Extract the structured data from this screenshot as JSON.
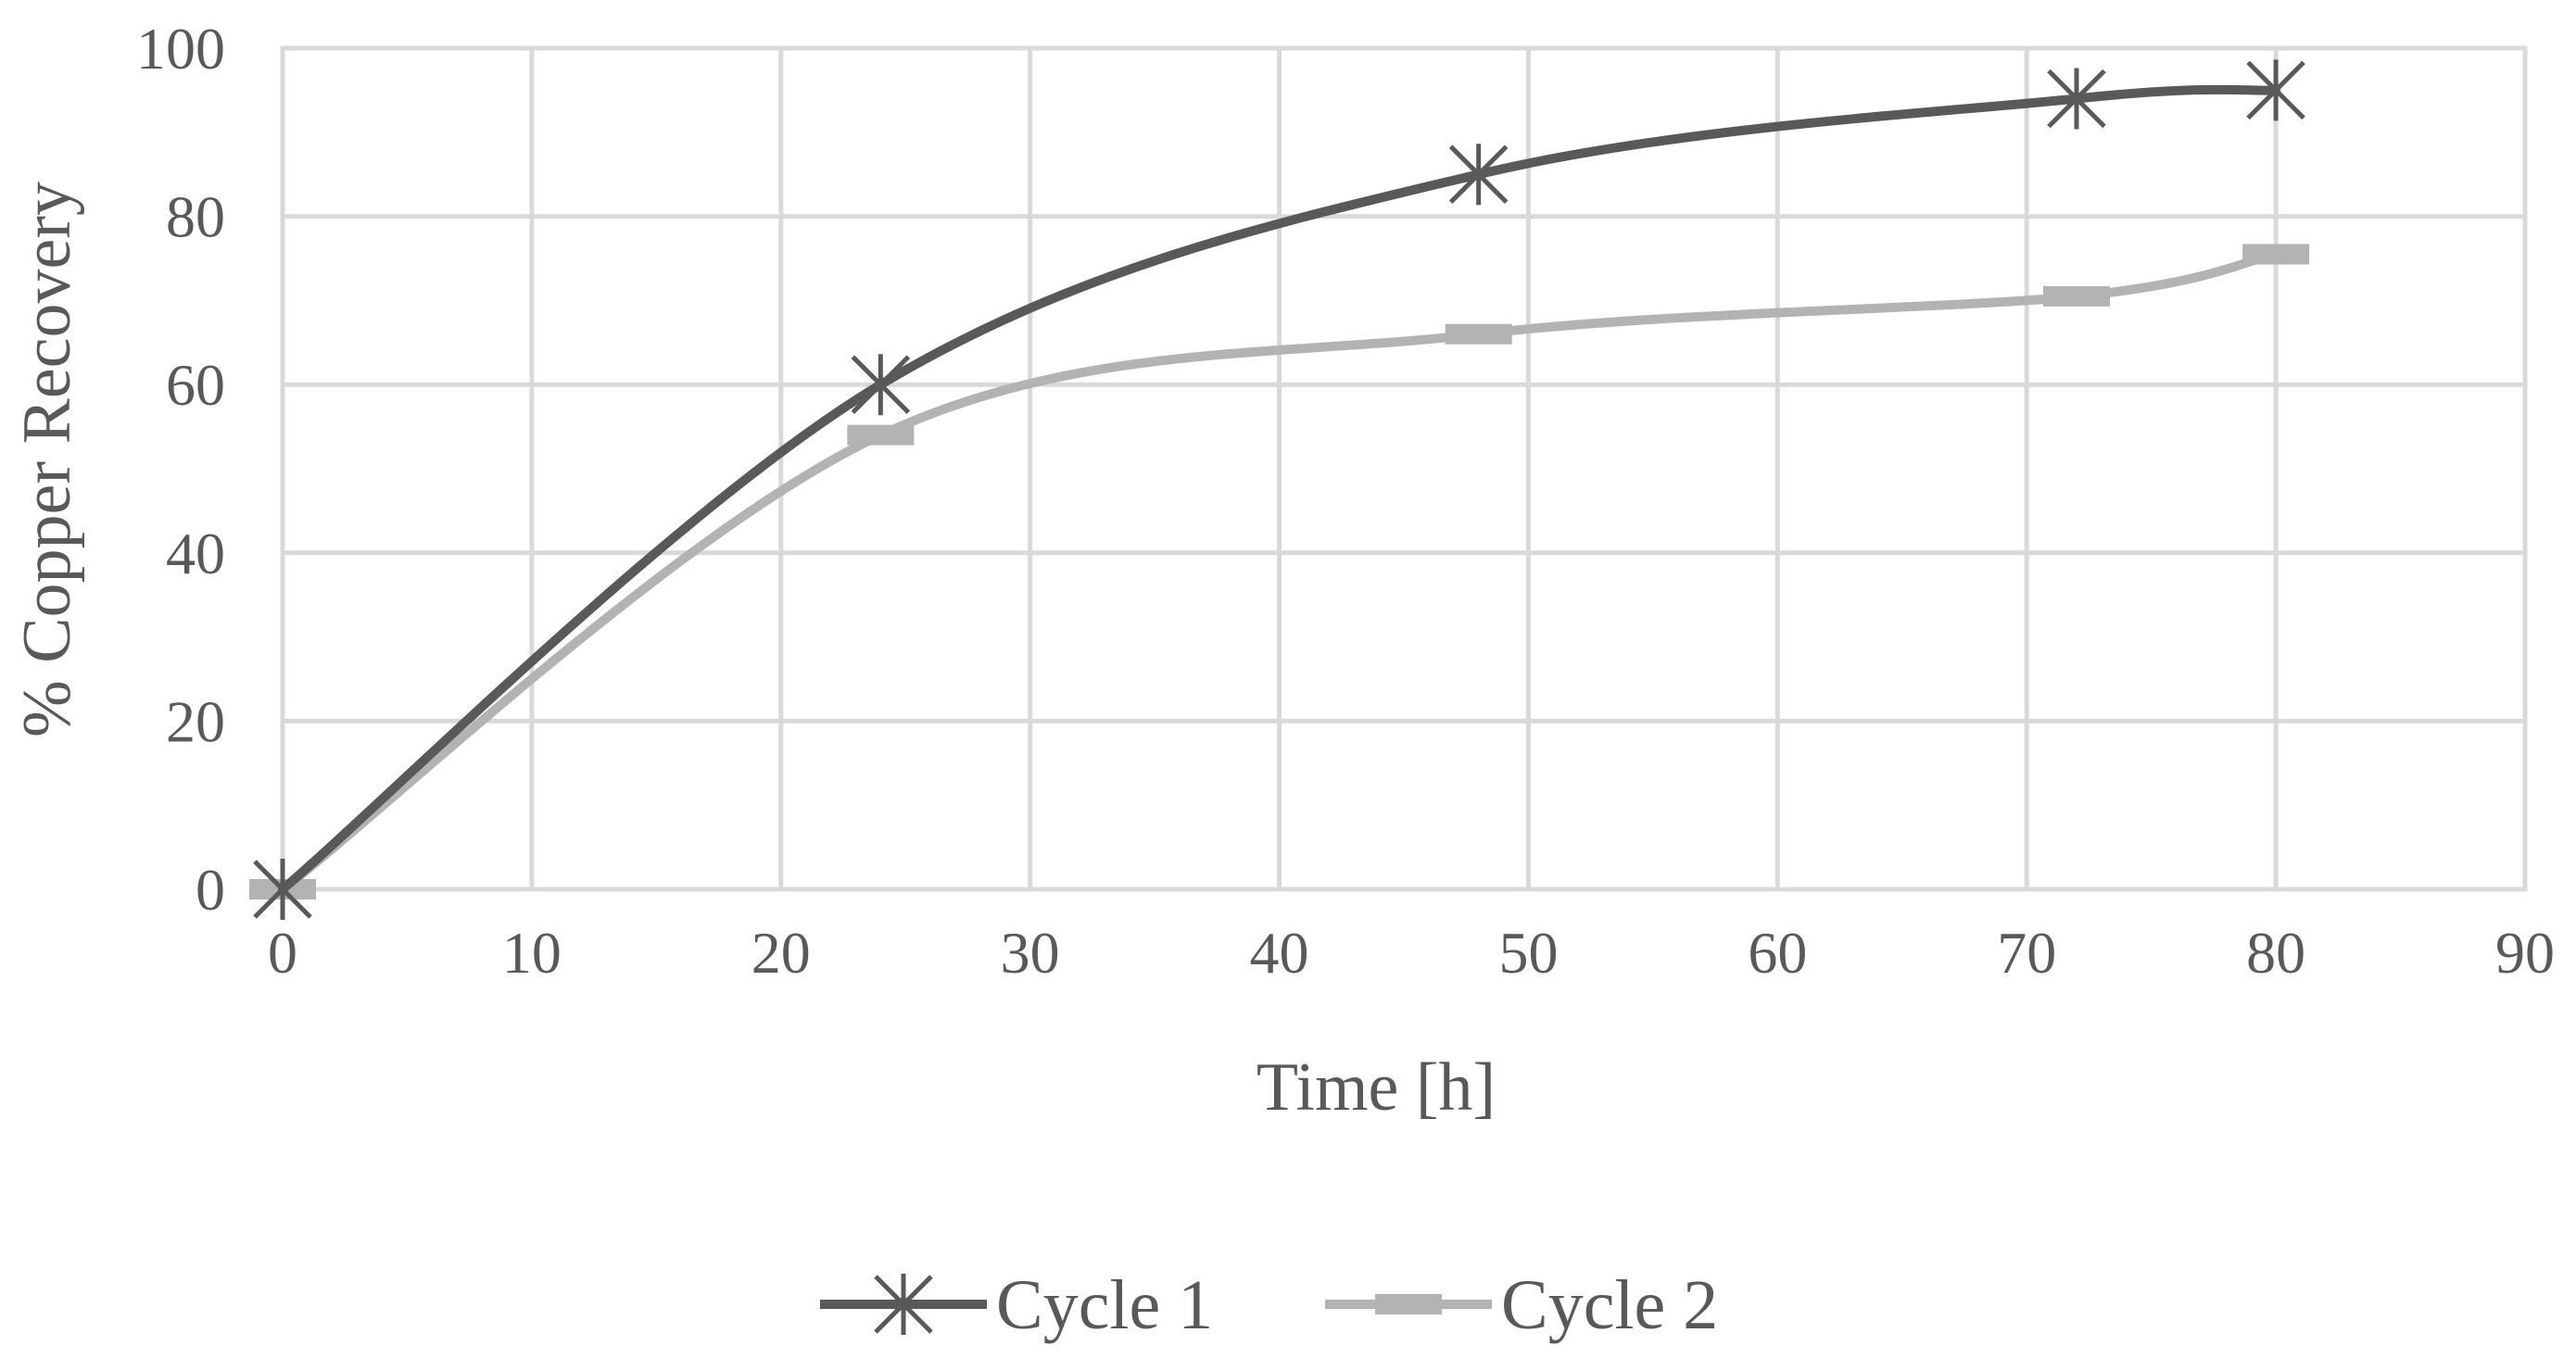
{
  "chart_data": {
    "type": "line",
    "title": "",
    "xlabel": "Time [h]",
    "ylabel": "% Copper Recovery",
    "xlim": [
      0,
      90
    ],
    "ylim": [
      0,
      100
    ],
    "xticks": [
      0,
      10,
      20,
      30,
      40,
      50,
      60,
      70,
      80,
      90
    ],
    "yticks": [
      0,
      20,
      40,
      60,
      80,
      100
    ],
    "grid": true,
    "smooth": true,
    "legend_position": "bottom",
    "series": [
      {
        "name": "Cycle 1",
        "color": "#595959",
        "marker": "asterisk",
        "x": [
          0,
          24,
          48,
          72,
          80
        ],
        "y": [
          0,
          60,
          85,
          94,
          95
        ]
      },
      {
        "name": "Cycle 2",
        "color": "#b3b3b3",
        "marker": "dash",
        "x": [
          0,
          24,
          48,
          72,
          80
        ],
        "y": [
          0,
          54,
          66,
          70.5,
          75.5
        ]
      }
    ]
  }
}
